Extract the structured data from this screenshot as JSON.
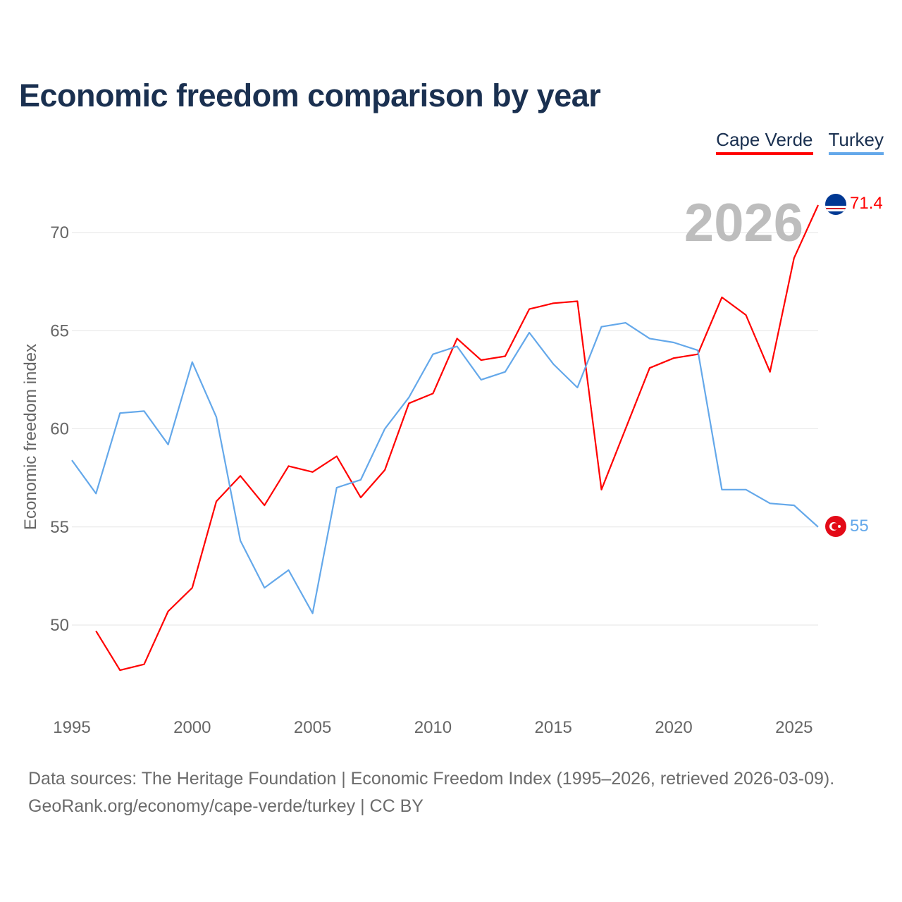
{
  "title": "Economic freedom comparison by year",
  "legend": [
    {
      "label": "Cape Verde",
      "color": "#ff0000"
    },
    {
      "label": "Turkey",
      "color": "#64a8ea"
    }
  ],
  "year_label": "2026",
  "footer": {
    "line1": "Data sources: The Heritage Foundation | Economic Freedom Index (1995–2026, retrieved 2026-03-09).",
    "line2": "GeoRank.org/economy/cape-verde/turkey | CC BY"
  },
  "chart_data": {
    "type": "line",
    "title": "Economic freedom comparison by year",
    "xlabel": "",
    "ylabel": "Economic freedom index",
    "xlim": [
      1995,
      2026
    ],
    "ylim": [
      46,
      72
    ],
    "x_ticks": [
      1995,
      2000,
      2005,
      2010,
      2015,
      2020,
      2025
    ],
    "y_ticks": [
      50,
      55,
      60,
      65,
      70
    ],
    "grid": true,
    "legend_position": "top-right",
    "series": [
      {
        "name": "Cape Verde",
        "color": "#ff0000",
        "end_label": "71.4",
        "x": [
          1996,
          1997,
          1998,
          1999,
          2000,
          2001,
          2002,
          2003,
          2004,
          2005,
          2006,
          2007,
          2008,
          2009,
          2010,
          2011,
          2012,
          2013,
          2014,
          2015,
          2016,
          2017,
          2018,
          2019,
          2020,
          2021,
          2022,
          2023,
          2024,
          2025,
          2026
        ],
        "values": [
          49.7,
          47.7,
          48.0,
          50.7,
          51.9,
          56.3,
          57.6,
          56.1,
          58.1,
          57.8,
          58.6,
          56.5,
          57.9,
          61.3,
          61.8,
          64.6,
          63.5,
          63.7,
          66.1,
          66.4,
          66.5,
          56.9,
          60.0,
          63.1,
          63.6,
          63.8,
          66.7,
          65.8,
          62.9,
          68.7,
          71.4
        ]
      },
      {
        "name": "Turkey",
        "color": "#64a8ea",
        "end_label": "55",
        "x": [
          1995,
          1996,
          1997,
          1998,
          1999,
          2000,
          2001,
          2002,
          2003,
          2004,
          2005,
          2006,
          2007,
          2008,
          2009,
          2010,
          2011,
          2012,
          2013,
          2014,
          2015,
          2016,
          2017,
          2018,
          2019,
          2020,
          2021,
          2022,
          2023,
          2024,
          2025,
          2026
        ],
        "values": [
          58.4,
          56.7,
          60.8,
          60.9,
          59.2,
          63.4,
          60.6,
          54.3,
          51.9,
          52.8,
          50.6,
          57.0,
          57.4,
          60.0,
          61.6,
          63.8,
          64.2,
          62.5,
          62.9,
          64.9,
          63.3,
          62.1,
          65.2,
          65.4,
          64.6,
          64.4,
          64.0,
          56.9,
          56.9,
          56.2,
          56.1,
          55.0
        ]
      }
    ]
  }
}
